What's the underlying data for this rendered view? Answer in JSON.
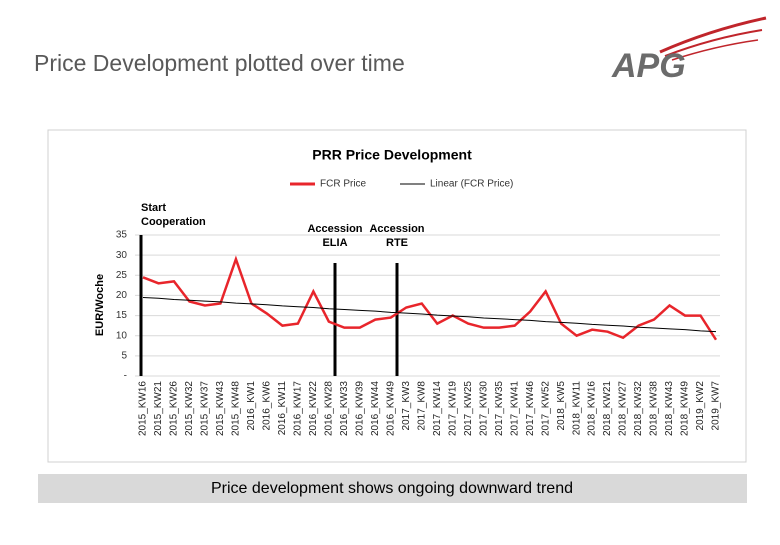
{
  "slide": {
    "title": "Price Development plotted over time",
    "footer": "Price development shows ongoing downward trend",
    "logo": "APG"
  },
  "chart_data": {
    "type": "line",
    "title": "PRR Price Development",
    "y_label": "EUR/Woche",
    "categories": [
      "2015_KW16",
      "2015_KW21",
      "2015_KW26",
      "2015_KW32",
      "2015_KW37",
      "2015_KW43",
      "2015_KW48",
      "2016_KW1",
      "2016_KW6",
      "2016_KW11",
      "2016_KW17",
      "2016_KW22",
      "2016_KW28",
      "2016_KW33",
      "2016_KW39",
      "2016_KW44",
      "2016_KW49",
      "2017_KW3",
      "2017_KW8",
      "2017_KW14",
      "2017_KW19",
      "2017_KW25",
      "2017_KW30",
      "2017_KW35",
      "2017_KW41",
      "2017_KW46",
      "2017_KW52",
      "2018_KW5",
      "2018_KW11",
      "2018_KW16",
      "2018_KW21",
      "2018_KW27",
      "2018_KW32",
      "2018_KW38",
      "2018_KW43",
      "2018_KW49",
      "2019_KW2",
      "2019_KW7"
    ],
    "series": [
      {
        "name": "FCR Price",
        "color": "#e8252b",
        "values": [
          24.5,
          23,
          23.5,
          18.5,
          17.5,
          18,
          29,
          18,
          15.5,
          12.5,
          13,
          21,
          13.5,
          12,
          12,
          14,
          14.5,
          17,
          18,
          13,
          15,
          13,
          12,
          12,
          12.5,
          16,
          21,
          13,
          10,
          11.5,
          11,
          9.5,
          12.5,
          14,
          17.5,
          15,
          15,
          9
        ]
      },
      {
        "name": "Linear (FCR Price)",
        "color": "#000000",
        "values": [
          19.5,
          19.3,
          19.0,
          18.8,
          18.6,
          18.4,
          18.1,
          17.9,
          17.7,
          17.4,
          17.2,
          17.0,
          16.7,
          16.5,
          16.3,
          16.1,
          15.8,
          15.6,
          15.4,
          15.1,
          14.9,
          14.7,
          14.4,
          14.2,
          14.0,
          13.8,
          13.5,
          13.3,
          13.1,
          12.8,
          12.6,
          12.4,
          12.1,
          11.9,
          11.7,
          11.5,
          11.2,
          11.0
        ]
      }
    ],
    "ylim": [
      0,
      35
    ],
    "yticks": [
      {
        "value": 0,
        "label": "-"
      },
      5,
      10,
      15,
      20,
      25,
      30,
      35
    ],
    "grid": true,
    "annotations": [
      {
        "lines": [
          "Start",
          "Cooperation"
        ]
      },
      {
        "lines": [
          "Accession",
          "ELIA"
        ]
      },
      {
        "lines": [
          "Accession",
          "RTE"
        ]
      }
    ]
  }
}
